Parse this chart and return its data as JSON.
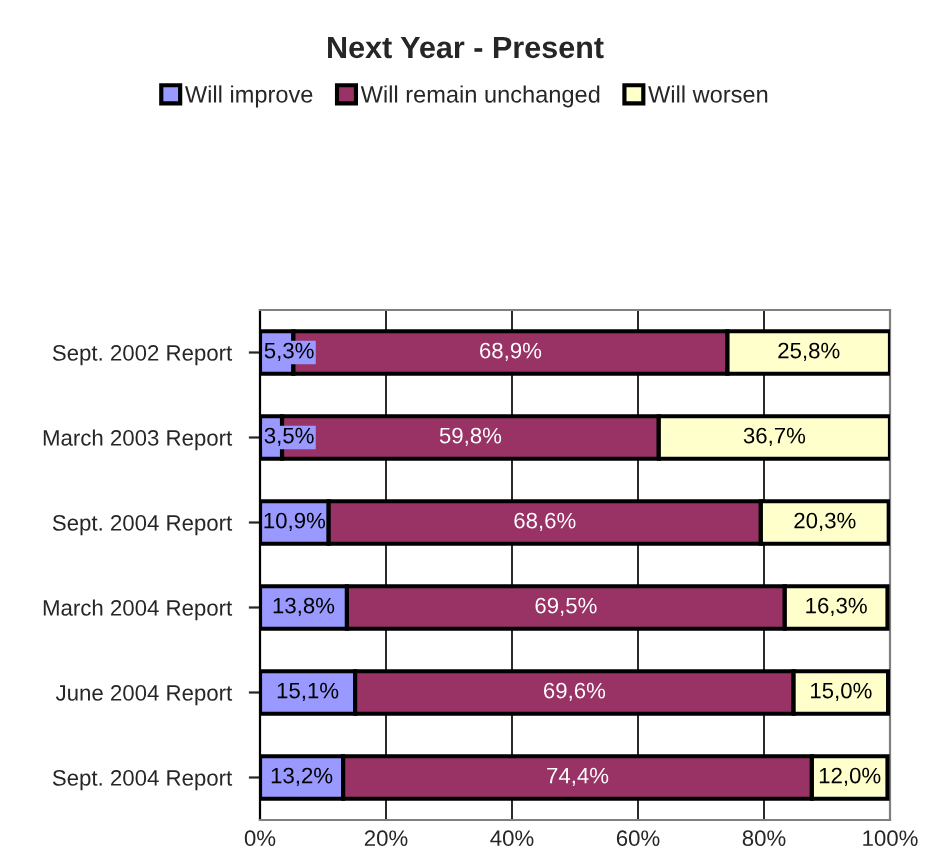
{
  "chart_data": {
    "type": "bar",
    "orientation": "horizontal",
    "stacked": true,
    "title": "Next Year - Present",
    "categories": [
      "Sept. 2002 Report",
      "March 2003 Report",
      "Sept. 2004 Report",
      "March 2004 Report",
      "June 2004 Report",
      "Sept. 2004 Report"
    ],
    "series": [
      {
        "name": "Will improve",
        "color": "#9999ff",
        "values": [
          5.3,
          3.5,
          10.9,
          13.8,
          15.1,
          13.2
        ],
        "value_labels": [
          "5,3%",
          "3,5%",
          "10,9%",
          "13,8%",
          "15,1%",
          "13,2%"
        ]
      },
      {
        "name": "Will remain unchanged",
        "color": "#993366",
        "values": [
          68.9,
          59.8,
          68.6,
          69.5,
          69.6,
          74.4
        ],
        "value_labels": [
          "68,9%",
          "59,8%",
          "68,6%",
          "69,5%",
          "69,6%",
          "74,4%"
        ]
      },
      {
        "name": "Will worsen",
        "color": "#ffffcc",
        "values": [
          25.8,
          36.7,
          20.3,
          16.3,
          15.0,
          12.0
        ],
        "value_labels": [
          "25,8%",
          "36,7%",
          "20,3%",
          "16,3%",
          "15,0%",
          "12,0%"
        ]
      }
    ],
    "xlim": [
      0,
      100
    ],
    "xticks": [
      {
        "value": 0,
        "label": "0%"
      },
      {
        "value": 20,
        "label": "20%"
      },
      {
        "value": 40,
        "label": "40%"
      },
      {
        "value": 60,
        "label": "60%"
      },
      {
        "value": 80,
        "label": "80%"
      },
      {
        "value": 100,
        "label": "100%"
      }
    ],
    "grid": "x",
    "legend": "top"
  }
}
